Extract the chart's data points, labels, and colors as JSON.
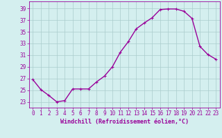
{
  "x": [
    0,
    1,
    2,
    3,
    4,
    5,
    6,
    7,
    8,
    9,
    10,
    11,
    12,
    13,
    14,
    15,
    16,
    17,
    18,
    19,
    20,
    21,
    22,
    23
  ],
  "y": [
    26.8,
    25.1,
    24.1,
    23.0,
    23.2,
    25.2,
    25.2,
    25.2,
    26.4,
    27.4,
    29.0,
    31.5,
    33.3,
    35.5,
    36.5,
    37.4,
    38.8,
    38.9,
    38.9,
    38.5,
    37.3,
    32.5,
    31.1,
    30.3
  ],
  "line_color": "#990099",
  "marker": "+",
  "marker_size": 3,
  "linewidth": 1.0,
  "bg_color": "#d4efef",
  "grid_color": "#aacccc",
  "tick_color": "#990099",
  "label_color": "#990099",
  "xlabel": "Windchill (Refroidissement éolien,°C)",
  "xlabel_fontsize": 6.0,
  "tick_fontsize": 5.5,
  "ytick_labels": [
    23,
    25,
    27,
    29,
    31,
    33,
    35,
    37,
    39
  ],
  "ylim": [
    22.0,
    40.2
  ],
  "xlim": [
    -0.5,
    23.5
  ]
}
